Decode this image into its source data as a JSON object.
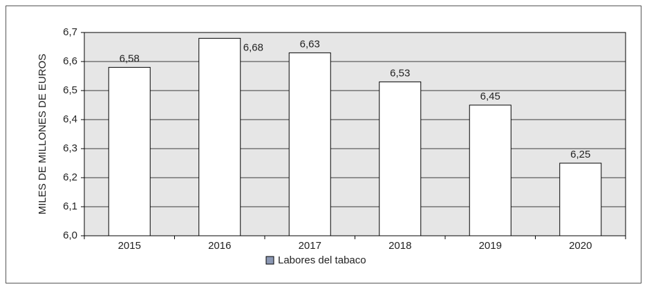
{
  "chart_data": {
    "type": "bar",
    "y_label": "MILES DE MILLONES DE EUROS",
    "categories": [
      "2015",
      "2016",
      "2017",
      "2018",
      "2019",
      "2020"
    ],
    "series": [
      {
        "name": "Labores del tabaco",
        "color": "#ffffff",
        "legend_color": "#8c98b4",
        "values": [
          6.58,
          6.68,
          6.63,
          6.53,
          6.45,
          6.25
        ],
        "value_labels": [
          "6,58",
          "6,68",
          "6,63",
          "6,53",
          "6,45",
          "6,25"
        ]
      }
    ],
    "ylim": [
      6.0,
      6.7
    ],
    "yticks": [
      {
        "value": 6.0,
        "label": "6,0"
      },
      {
        "value": 6.1,
        "label": "6,1"
      },
      {
        "value": 6.2,
        "label": "6,2"
      },
      {
        "value": 6.3,
        "label": "6,3"
      },
      {
        "value": 6.4,
        "label": "6,4"
      },
      {
        "value": 6.5,
        "label": "6,5"
      },
      {
        "value": 6.6,
        "label": "6,6"
      },
      {
        "value": 6.7,
        "label": "6,7"
      }
    ],
    "grid": true,
    "plot_background": "#e6e6e6",
    "legend": "bottom"
  }
}
